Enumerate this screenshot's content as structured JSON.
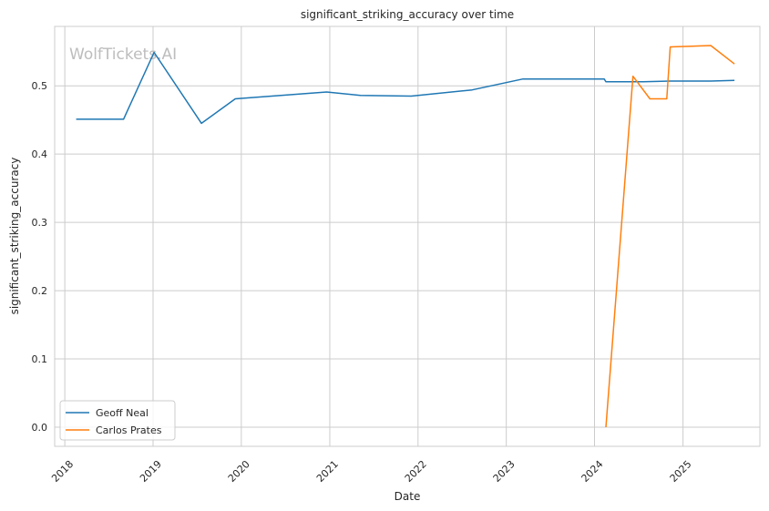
{
  "chart_data": {
    "type": "line",
    "title": "significant_striking_accuracy over time",
    "xlabel": "Date",
    "ylabel": "significant_striking_accuracy",
    "watermark": "WolfTickets.AI",
    "x_ticks": [
      "2018",
      "2019",
      "2020",
      "2021",
      "2022",
      "2023",
      "2024",
      "2025"
    ],
    "y_ticks": [
      "0.0",
      "0.1",
      "0.2",
      "0.3",
      "0.4",
      "0.5"
    ],
    "y_tick_values": [
      0.0,
      0.1,
      0.2,
      0.3,
      0.4,
      0.5
    ],
    "xlim": [
      "2017-11-20",
      "2025-11-15"
    ],
    "ylim": [
      -0.028,
      0.587
    ],
    "grid": true,
    "legend_position": "lower-left",
    "series": [
      {
        "name": "Geoff Neal",
        "color": "#1f77b4",
        "points": [
          {
            "x": "2018-02-17",
            "y": 0.451
          },
          {
            "x": "2018-09-01",
            "y": 0.451
          },
          {
            "x": "2019-01-05",
            "y": 0.549
          },
          {
            "x": "2019-07-20",
            "y": 0.445
          },
          {
            "x": "2019-12-07",
            "y": 0.481
          },
          {
            "x": "2020-12-19",
            "y": 0.491
          },
          {
            "x": "2021-05-08",
            "y": 0.486
          },
          {
            "x": "2021-12-04",
            "y": 0.485
          },
          {
            "x": "2022-08-13",
            "y": 0.494
          },
          {
            "x": "2023-03-11",
            "y": 0.51
          },
          {
            "x": "2024-02-10",
            "y": 0.51
          },
          {
            "x": "2024-02-17",
            "y": 0.506
          },
          {
            "x": "2024-07-20",
            "y": 0.506
          },
          {
            "x": "2024-11-09",
            "y": 0.507
          },
          {
            "x": "2025-04-26",
            "y": 0.507
          },
          {
            "x": "2025-08-02",
            "y": 0.508
          }
        ]
      },
      {
        "name": "Carlos Prates",
        "color": "#ff7f0e",
        "points": [
          {
            "x": "2024-02-17",
            "y": 0.0
          },
          {
            "x": "2024-06-08",
            "y": 0.514
          },
          {
            "x": "2024-08-17",
            "y": 0.481
          },
          {
            "x": "2024-10-26",
            "y": 0.481
          },
          {
            "x": "2024-11-09",
            "y": 0.557
          },
          {
            "x": "2025-04-26",
            "y": 0.559
          },
          {
            "x": "2025-08-02",
            "y": 0.532
          }
        ]
      }
    ]
  }
}
